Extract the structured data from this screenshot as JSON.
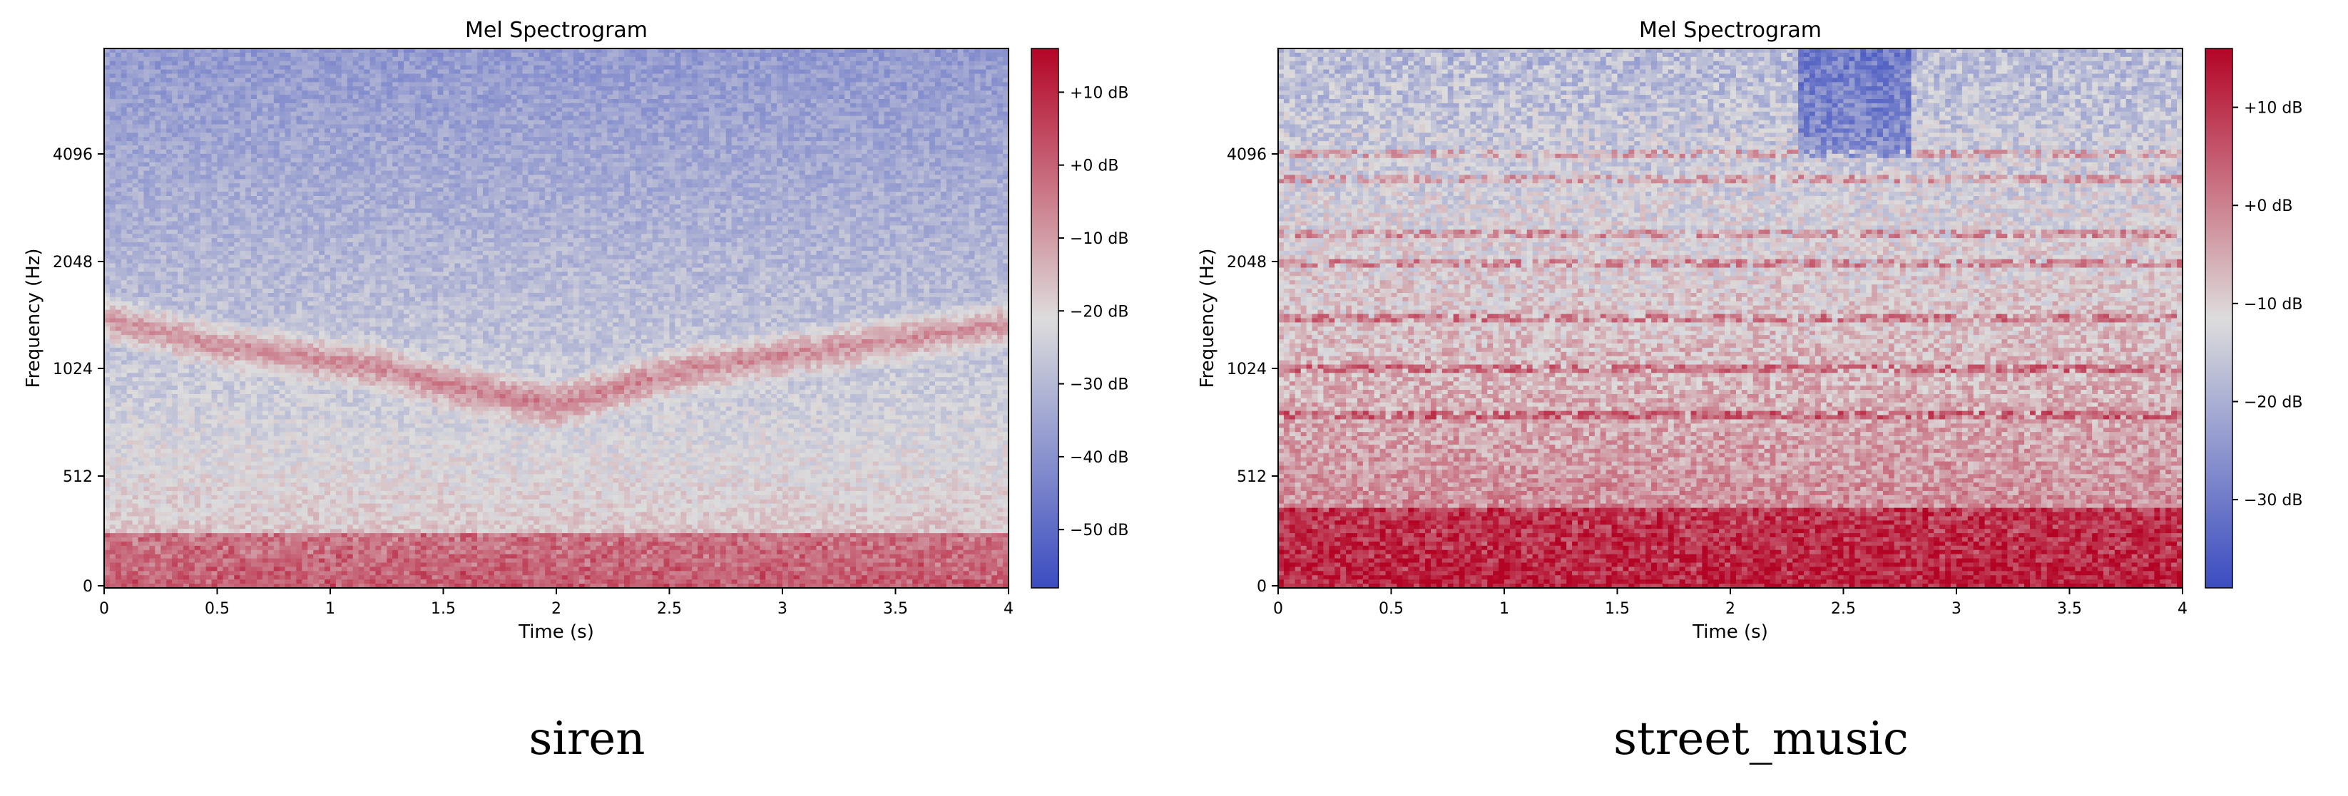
{
  "caption_left": "siren",
  "caption_right": "street_music",
  "chart_data": [
    {
      "type": "heatmap",
      "title": "Mel Spectrogram",
      "xlabel": "Time (s)",
      "ylabel": "Frequency (Hz)",
      "xlim": [
        0,
        4
      ],
      "xticks": [
        "0",
        "0.5",
        "1",
        "1.5",
        "2",
        "2.5",
        "3",
        "3.5",
        "4"
      ],
      "yticks": [
        "0",
        "512",
        "1024",
        "2048",
        "4096"
      ],
      "colorbar_ticks": [
        "+10 dB",
        "+0 dB",
        "−10 dB",
        "−20 dB",
        "−30 dB",
        "−40 dB",
        "−50 dB"
      ],
      "colorbar_range_db": [
        -58,
        16
      ],
      "colormap": [
        "#3b4cc0",
        "#dddcdc",
        "#b40426"
      ],
      "sound": "siren",
      "sweep_hz": [
        [
          0,
          1500
        ],
        [
          0.5,
          1250
        ],
        [
          1,
          1100
        ],
        [
          1.5,
          950
        ],
        [
          2,
          850
        ],
        [
          2.5,
          1000
        ],
        [
          3,
          1150
        ],
        [
          3.5,
          1300
        ],
        [
          4,
          1450
        ]
      ]
    },
    {
      "type": "heatmap",
      "title": "Mel Spectrogram",
      "xlabel": "Time (s)",
      "ylabel": "Frequency (Hz)",
      "xlim": [
        0,
        4
      ],
      "xticks": [
        "0",
        "0.5",
        "1",
        "1.5",
        "2",
        "2.5",
        "3",
        "3.5",
        "4"
      ],
      "yticks": [
        "0",
        "512",
        "1024",
        "2048",
        "4096"
      ],
      "colorbar_ticks": [
        "+10 dB",
        "+0 dB",
        "−10 dB",
        "−20 dB",
        "−30 dB"
      ],
      "colorbar_range_db": [
        -39,
        16
      ],
      "colormap": [
        "#3b4cc0",
        "#dddcdc",
        "#b40426"
      ],
      "sound": "street_music",
      "harmonics_hz": [
        4096,
        3600,
        2600,
        2048,
        1500,
        1024,
        800
      ]
    }
  ]
}
